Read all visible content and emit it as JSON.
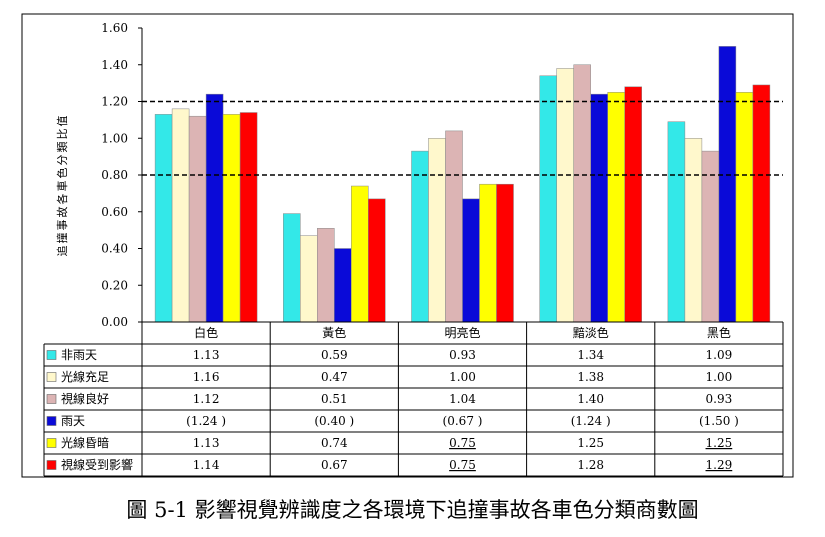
{
  "chart_data": {
    "type": "bar",
    "title": "",
    "xlabel": "",
    "ylabel": "追撞事故各車色分類比值",
    "ylim": [
      0,
      1.6
    ],
    "yticks": [
      "0.00",
      "0.20",
      "0.40",
      "0.60",
      "0.80",
      "1.00",
      "1.20",
      "1.40",
      "1.60"
    ],
    "grid": false,
    "legend": "data-table-left",
    "reference_lines": [
      1.2,
      0.8
    ],
    "categories": [
      "白色",
      "黃色",
      "明亮色",
      "黯淡色",
      "黑色"
    ],
    "series": [
      {
        "name": "非雨天",
        "color": "#33e8e8",
        "values": [
          1.13,
          0.59,
          0.93,
          1.34,
          1.09
        ],
        "labels": [
          "1.13",
          "0.59",
          "0.93",
          "1.34",
          "1.09"
        ],
        "underlined": [
          false,
          false,
          false,
          false,
          false
        ]
      },
      {
        "name": "光線充足",
        "color": "#fff8cc",
        "values": [
          1.16,
          0.47,
          1.0,
          1.38,
          1.0
        ],
        "labels": [
          "1.16",
          "0.47",
          "1.00",
          "1.38",
          "1.00"
        ],
        "underlined": [
          false,
          false,
          false,
          false,
          false
        ]
      },
      {
        "name": "視線良好",
        "color": "#dcb4b4",
        "values": [
          1.12,
          0.51,
          1.04,
          1.4,
          0.93
        ],
        "labels": [
          "1.12",
          "0.51",
          "1.04",
          "1.40",
          "0.93"
        ],
        "underlined": [
          false,
          false,
          false,
          false,
          false
        ]
      },
      {
        "name": "雨天",
        "color": "#0a0ad8",
        "values": [
          1.24,
          0.4,
          0.67,
          1.24,
          1.5
        ],
        "labels": [
          "(1.24 )",
          "(0.40 )",
          "(0.67 )",
          "(1.24 )",
          "(1.50 )"
        ],
        "underlined": [
          false,
          false,
          false,
          false,
          false
        ]
      },
      {
        "name": "光線昏暗",
        "color": "#ffff00",
        "values": [
          1.13,
          0.74,
          0.75,
          1.25,
          1.25
        ],
        "labels": [
          "1.13",
          "0.74",
          "0.75",
          "1.25",
          "1.25"
        ],
        "underlined": [
          false,
          false,
          true,
          false,
          true
        ]
      },
      {
        "name": "視線受到影響",
        "color": "#ff0000",
        "values": [
          1.14,
          0.67,
          0.75,
          1.28,
          1.29
        ],
        "labels": [
          "1.14",
          "0.67",
          "0.75",
          "1.28",
          "1.29"
        ],
        "underlined": [
          false,
          false,
          true,
          false,
          true
        ]
      }
    ]
  },
  "caption": "圖 5-1  影響視覺辨識度之各環境下追撞事故各車色分類商數圖"
}
